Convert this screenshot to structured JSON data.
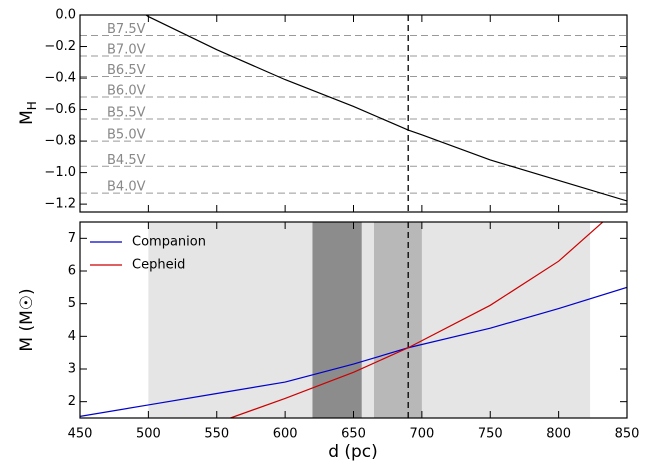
{
  "chart_data": [
    {
      "type": "line",
      "ylabel": [
        "M",
        "H"
      ],
      "xlim": [
        450,
        850
      ],
      "ylim": [
        -1.25,
        0.0
      ],
      "yticks": [
        {
          "value": 0,
          "label": "0.0"
        },
        {
          "value": -0.2,
          "label": "−0.2"
        },
        {
          "value": -0.4,
          "label": "−0.4"
        },
        {
          "value": -0.6,
          "label": "−0.6"
        },
        {
          "value": -0.8,
          "label": "−0.8"
        },
        {
          "value": -1.0,
          "label": "−1.0"
        },
        {
          "value": -1.2,
          "label": "−1.2"
        }
      ],
      "reference_lines": [
        {
          "label": "B7.5V",
          "value": -0.13
        },
        {
          "label": "B7.0V",
          "value": -0.26
        },
        {
          "label": "B6.5V",
          "value": -0.39
        },
        {
          "label": "B6.0V",
          "value": -0.52
        },
        {
          "label": "B5.5V",
          "value": -0.66
        },
        {
          "label": "B5.0V",
          "value": -0.8
        },
        {
          "label": "B4.5V",
          "value": -0.96
        },
        {
          "label": "B4.0V",
          "value": -1.13
        }
      ],
      "vline": 690,
      "series": [
        {
          "color": "#000000",
          "x": [
            495,
            500,
            550,
            600,
            650,
            690,
            700,
            750,
            800,
            850
          ],
          "values": [
            0.02,
            -0.01,
            -0.22,
            -0.41,
            -0.58,
            -0.73,
            -0.76,
            -0.92,
            -1.05,
            -1.18
          ]
        }
      ]
    },
    {
      "type": "line",
      "xlabel": "d (pc)",
      "ylabel": "M (M☉)",
      "xlim": [
        450,
        850
      ],
      "ylim": [
        1.5,
        7.5
      ],
      "xticks": [
        450,
        500,
        550,
        600,
        650,
        700,
        750,
        800,
        850
      ],
      "yticks": [
        2,
        3,
        4,
        5,
        6,
        7
      ],
      "legend": "upper left",
      "bands": [
        {
          "xlim": [
            500,
            823
          ],
          "color": "#e5e5e5"
        },
        {
          "xlim": [
            620,
            656
          ],
          "color": "#8c8c8c"
        },
        {
          "xlim": [
            665,
            700
          ],
          "color": "#b8b8b8"
        }
      ],
      "vline": 690,
      "series": [
        {
          "name": "Companion",
          "color": "#0000cc",
          "x": [
            450,
            500,
            550,
            600,
            650,
            690,
            750,
            800,
            850
          ],
          "values": [
            1.55,
            1.9,
            2.25,
            2.6,
            3.15,
            3.65,
            4.25,
            4.85,
            5.5
          ]
        },
        {
          "name": "Cepheid",
          "color": "#cc0000",
          "x": [
            560,
            600,
            650,
            690,
            750,
            800,
            835
          ],
          "values": [
            1.5,
            2.1,
            2.9,
            3.65,
            4.95,
            6.3,
            7.6
          ]
        }
      ]
    }
  ]
}
